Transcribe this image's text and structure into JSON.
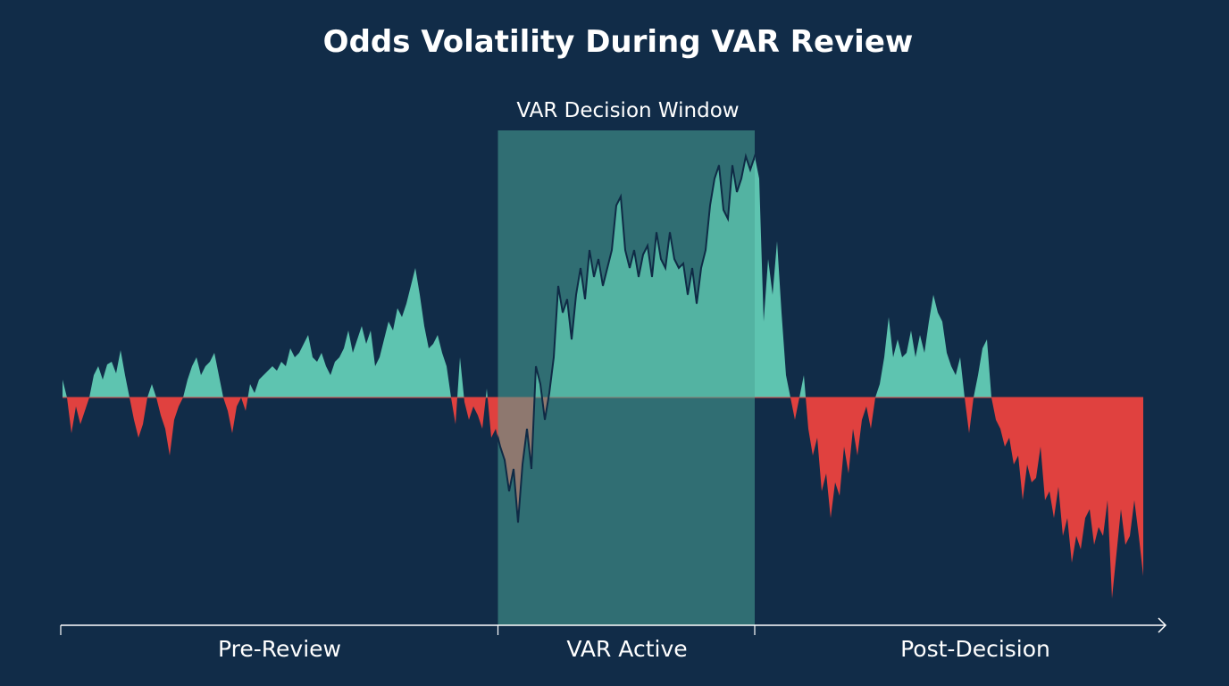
{
  "chart_data": {
    "type": "area",
    "title": "Odds Volatility During VAR Review",
    "xlabel": "",
    "ylabel": "",
    "grid": false,
    "legend": "none",
    "baseline": 0,
    "highlight_window": {
      "label": "VAR Decision Window",
      "start_index": 97.5,
      "end_index": 155
    },
    "phases": [
      {
        "label": "Pre-Review",
        "start_index": 0,
        "end_index": 97.5
      },
      {
        "label": "VAR Active",
        "start_index": 97.5,
        "end_index": 155
      },
      {
        "label": "Post-Decision",
        "start_index": 155,
        "end_index": 242
      }
    ],
    "colors": {
      "background": "#112c48",
      "positive": "#5ec4b0",
      "negative": "#e0413f",
      "window": "#4aa597",
      "line": "#0f2a45",
      "axis": "#ffffff"
    },
    "values": [
      0.2,
      0,
      -0.4,
      -0.1,
      -0.3,
      -0.15,
      0,
      0.25,
      0.35,
      0.2,
      0.37,
      0.4,
      0.27,
      0.53,
      0.25,
      0,
      -0.25,
      -0.45,
      -0.3,
      0,
      0.15,
      0,
      -0.2,
      -0.35,
      -0.65,
      -0.25,
      -0.1,
      0,
      0.2,
      0.35,
      0.45,
      0.25,
      0.35,
      0.4,
      0.5,
      0.25,
      0,
      -0.15,
      -0.4,
      -0.1,
      0,
      -0.15,
      0.15,
      0.05,
      0.2,
      0.25,
      0.3,
      0.35,
      0.3,
      0.4,
      0.35,
      0.55,
      0.45,
      0.5,
      0.6,
      0.7,
      0.45,
      0.4,
      0.5,
      0.35,
      0.25,
      0.4,
      0.45,
      0.55,
      0.75,
      0.5,
      0.65,
      0.8,
      0.6,
      0.75,
      0.35,
      0.45,
      0.65,
      0.85,
      0.75,
      1.0,
      0.9,
      1.05,
      1.25,
      1.45,
      1.15,
      0.8,
      0.55,
      0.6,
      0.7,
      0.5,
      0.35,
      0,
      -0.3,
      0.45,
      -0.05,
      -0.25,
      -0.1,
      -0.2,
      -0.35,
      0.1,
      -0.45,
      -0.35,
      -0.55,
      -0.7,
      -1.05,
      -0.8,
      -1.4,
      -0.75,
      -0.35,
      -0.8,
      0.35,
      0.15,
      -0.25,
      0.05,
      0.45,
      1.25,
      0.95,
      1.1,
      0.65,
      1.15,
      1.45,
      1.1,
      1.65,
      1.35,
      1.55,
      1.25,
      1.45,
      1.65,
      2.15,
      2.25,
      1.65,
      1.45,
      1.65,
      1.35,
      1.6,
      1.7,
      1.35,
      1.85,
      1.55,
      1.45,
      1.85,
      1.55,
      1.45,
      1.5,
      1.15,
      1.45,
      1.05,
      1.45,
      1.65,
      2.15,
      2.45,
      2.6,
      2.1,
      2.0,
      2.6,
      2.3,
      2.45,
      2.7,
      2.55,
      2.7,
      2.45,
      0.85,
      1.55,
      1.15,
      1.75,
      0.95,
      0.25,
      0,
      -0.25,
      0,
      0.25,
      -0.35,
      -0.65,
      -0.45,
      -1.05,
      -0.85,
      -1.35,
      -0.95,
      -1.1,
      -0.55,
      -0.85,
      -0.35,
      -0.65,
      -0.25,
      -0.1,
      -0.35,
      0,
      0.15,
      0.45,
      0.9,
      0.45,
      0.65,
      0.45,
      0.5,
      0.75,
      0.45,
      0.7,
      0.5,
      0.85,
      1.15,
      0.95,
      0.85,
      0.5,
      0.35,
      0.25,
      0.45,
      0,
      -0.4,
      0,
      0.25,
      0.55,
      0.65,
      0,
      -0.25,
      -0.35,
      -0.55,
      -0.45,
      -0.75,
      -0.65,
      -1.15,
      -0.75,
      -0.95,
      -0.9,
      -0.55,
      -1.15,
      -1.05,
      -1.35,
      -1.0,
      -1.55,
      -1.35,
      -1.85,
      -1.55,
      -1.7,
      -1.35,
      -1.25,
      -1.65,
      -1.45,
      -1.55,
      -1.15,
      -2.25,
      -1.75,
      -1.25,
      -1.65,
      -1.55,
      -1.15,
      -1.55,
      -2.0
    ]
  }
}
